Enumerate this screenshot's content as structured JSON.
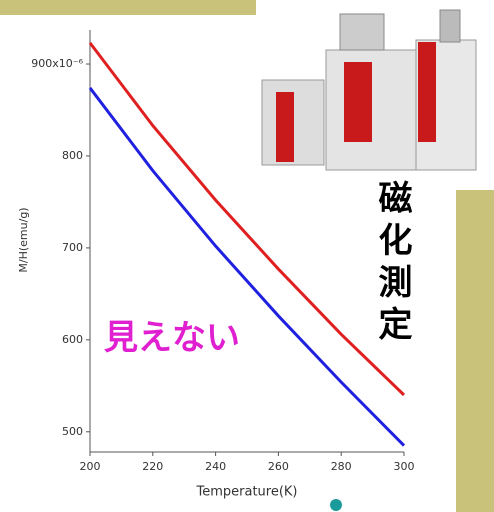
{
  "chart_data": {
    "type": "line",
    "x_label": "Temperature(K)",
    "y_label": "M/H(emu/g)",
    "x": [
      200,
      220,
      240,
      260,
      280,
      300
    ],
    "series": [
      {
        "color": "#e02020",
        "values": [
          923,
          833,
          752,
          677,
          606,
          540
        ]
      },
      {
        "color": "#2020e0",
        "values": [
          874,
          784,
          702,
          626,
          554,
          485
        ]
      }
    ],
    "xlim": [
      200,
      300
    ],
    "xticks": [
      200,
      220,
      240,
      260,
      280,
      300
    ],
    "ylim": [
      478,
      937
    ],
    "yticks": [
      500,
      600,
      700,
      800,
      {
        "value": 900,
        "label": "900x10⁻⁶"
      }
    ],
    "annotations": [
      "見えない",
      "磁化測定"
    ]
  }
}
